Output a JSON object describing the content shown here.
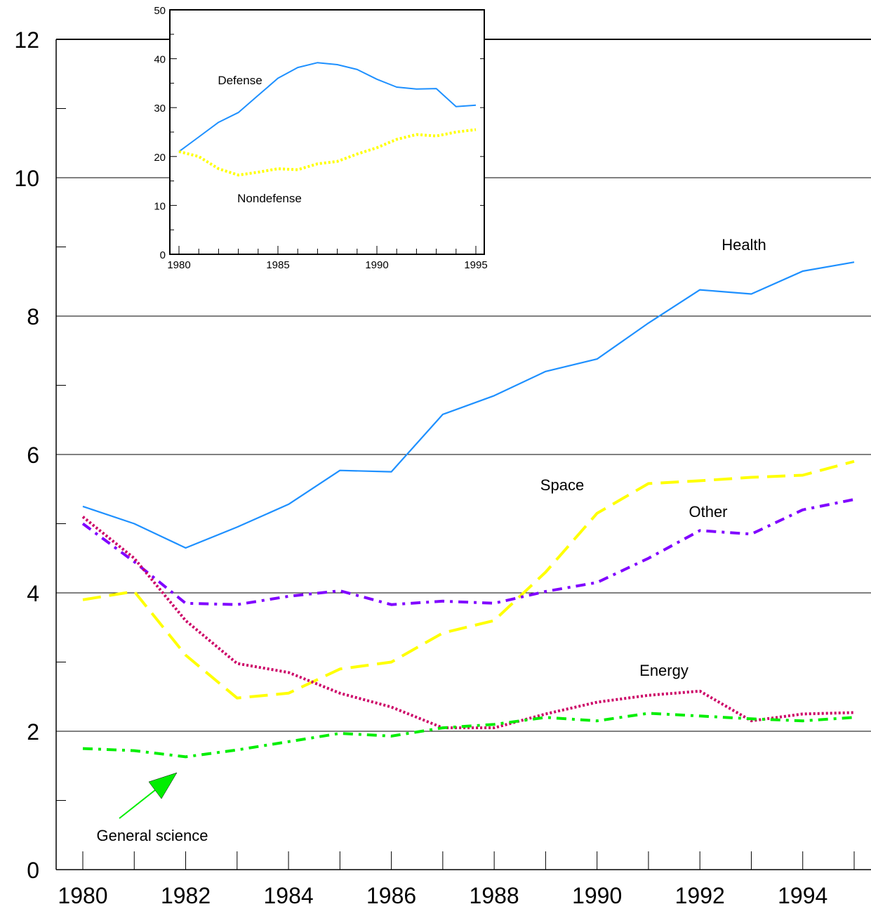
{
  "chart_data": [
    {
      "type": "line",
      "title": "",
      "xlabel": "",
      "ylabel": "",
      "xlim": [
        1980,
        1995
      ],
      "ylim": [
        0,
        12
      ],
      "grid": "horizontal",
      "x_ticks": [
        "1980",
        "1982",
        "1984",
        "1986",
        "1988",
        "1990",
        "1992",
        "1994"
      ],
      "y_ticks": [
        "0",
        "2",
        "4",
        "6",
        "8",
        "10",
        "12"
      ],
      "series": [
        {
          "name": "Health",
          "color": "#1E90FF",
          "style": "solid",
          "points": [
            [
              1980,
              5.25
            ],
            [
              1981,
              5.0
            ],
            [
              1982,
              4.65
            ],
            [
              1983,
              4.95
            ],
            [
              1984,
              5.28
            ],
            [
              1985,
              5.77
            ],
            [
              1986,
              5.75
            ],
            [
              1987,
              6.58
            ],
            [
              1988,
              6.85
            ],
            [
              1989,
              7.2
            ],
            [
              1990,
              7.38
            ],
            [
              1991,
              7.9
            ],
            [
              1992,
              8.38
            ],
            [
              1993,
              8.32
            ],
            [
              1994,
              8.65
            ],
            [
              1995,
              8.78
            ]
          ]
        },
        {
          "name": "Space",
          "color": "#FFFF00",
          "style": "dashed",
          "points": [
            [
              1980,
              3.9
            ],
            [
              1981,
              4.02
            ],
            [
              1982,
              3.1
            ],
            [
              1983,
              2.48
            ],
            [
              1984,
              2.55
            ],
            [
              1985,
              2.9
            ],
            [
              1986,
              3.0
            ],
            [
              1987,
              3.42
            ],
            [
              1988,
              3.6
            ],
            [
              1989,
              4.3
            ],
            [
              1990,
              5.15
            ],
            [
              1991,
              5.58
            ],
            [
              1992,
              5.62
            ],
            [
              1993,
              5.67
            ],
            [
              1994,
              5.7
            ],
            [
              1995,
              5.9
            ]
          ]
        },
        {
          "name": "Other",
          "color": "#8000FF",
          "style": "dashdot",
          "points": [
            [
              1980,
              5.0
            ],
            [
              1981,
              4.45
            ],
            [
              1982,
              3.85
            ],
            [
              1983,
              3.83
            ],
            [
              1984,
              3.95
            ],
            [
              1985,
              4.03
            ],
            [
              1986,
              3.83
            ],
            [
              1987,
              3.88
            ],
            [
              1988,
              3.85
            ],
            [
              1989,
              4.02
            ],
            [
              1990,
              4.15
            ],
            [
              1991,
              4.5
            ],
            [
              1992,
              4.9
            ],
            [
              1993,
              4.85
            ],
            [
              1994,
              5.2
            ],
            [
              1995,
              5.35
            ]
          ]
        },
        {
          "name": "Energy",
          "color": "#CC0066",
          "style": "dotted",
          "points": [
            [
              1980,
              5.1
            ],
            [
              1981,
              4.5
            ],
            [
              1982,
              3.6
            ],
            [
              1983,
              2.98
            ],
            [
              1984,
              2.85
            ],
            [
              1985,
              2.55
            ],
            [
              1986,
              2.35
            ],
            [
              1987,
              2.05
            ],
            [
              1988,
              2.05
            ],
            [
              1989,
              2.25
            ],
            [
              1990,
              2.42
            ],
            [
              1991,
              2.52
            ],
            [
              1992,
              2.58
            ],
            [
              1993,
              2.15
            ],
            [
              1994,
              2.25
            ],
            [
              1995,
              2.27
            ]
          ]
        },
        {
          "name": "General science",
          "color": "#00EE00",
          "style": "dashdot",
          "points": [
            [
              1980,
              1.75
            ],
            [
              1981,
              1.72
            ],
            [
              1982,
              1.63
            ],
            [
              1983,
              1.73
            ],
            [
              1984,
              1.85
            ],
            [
              1985,
              1.97
            ],
            [
              1986,
              1.93
            ],
            [
              1987,
              2.05
            ],
            [
              1988,
              2.1
            ],
            [
              1989,
              2.2
            ],
            [
              1990,
              2.15
            ],
            [
              1991,
              2.26
            ],
            [
              1992,
              2.22
            ],
            [
              1993,
              2.18
            ],
            [
              1994,
              2.15
            ],
            [
              1995,
              2.2
            ]
          ]
        }
      ],
      "annotations": [
        {
          "text": "Health"
        },
        {
          "text": "Space"
        },
        {
          "text": "Other"
        },
        {
          "text": "Energy"
        },
        {
          "text": "General science",
          "arrow": true
        }
      ]
    },
    {
      "type": "line",
      "title": "",
      "xlabel": "",
      "ylabel": "",
      "xlim": [
        1980,
        1995
      ],
      "ylim": [
        0,
        50
      ],
      "grid": "none",
      "x_ticks": [
        "1980",
        "1985",
        "1990",
        "1995"
      ],
      "y_ticks": [
        "0",
        "10",
        "20",
        "30",
        "40",
        "50"
      ],
      "series": [
        {
          "name": "Defense",
          "color": "#1E90FF",
          "style": "solid",
          "points": [
            [
              1980,
              21
            ],
            [
              1981,
              24
            ],
            [
              1982,
              27
            ],
            [
              1983,
              29
            ],
            [
              1984,
              32.5
            ],
            [
              1985,
              36
            ],
            [
              1986,
              38.2
            ],
            [
              1987,
              39.2
            ],
            [
              1988,
              38.8
            ],
            [
              1989,
              37.8
            ],
            [
              1990,
              35.8
            ],
            [
              1991,
              34.2
            ],
            [
              1992,
              33.8
            ],
            [
              1993,
              33.9
            ],
            [
              1994,
              30.2
            ],
            [
              1995,
              30.5
            ]
          ]
        },
        {
          "name": "Nondefense",
          "color": "#FFFF00",
          "style": "dotted",
          "points": [
            [
              1980,
              21
            ],
            [
              1981,
              20
            ],
            [
              1982,
              17.5
            ],
            [
              1983,
              16.2
            ],
            [
              1984,
              16.8
            ],
            [
              1985,
              17.5
            ],
            [
              1986,
              17.3
            ],
            [
              1987,
              18.5
            ],
            [
              1988,
              19
            ],
            [
              1989,
              20.5
            ],
            [
              1990,
              21.8
            ],
            [
              1991,
              23.5
            ],
            [
              1992,
              24.5
            ],
            [
              1993,
              24.2
            ],
            [
              1994,
              25
            ],
            [
              1995,
              25.5
            ]
          ]
        }
      ],
      "annotations": [
        {
          "text": "Defense"
        },
        {
          "text": "Nondefense"
        }
      ]
    }
  ]
}
